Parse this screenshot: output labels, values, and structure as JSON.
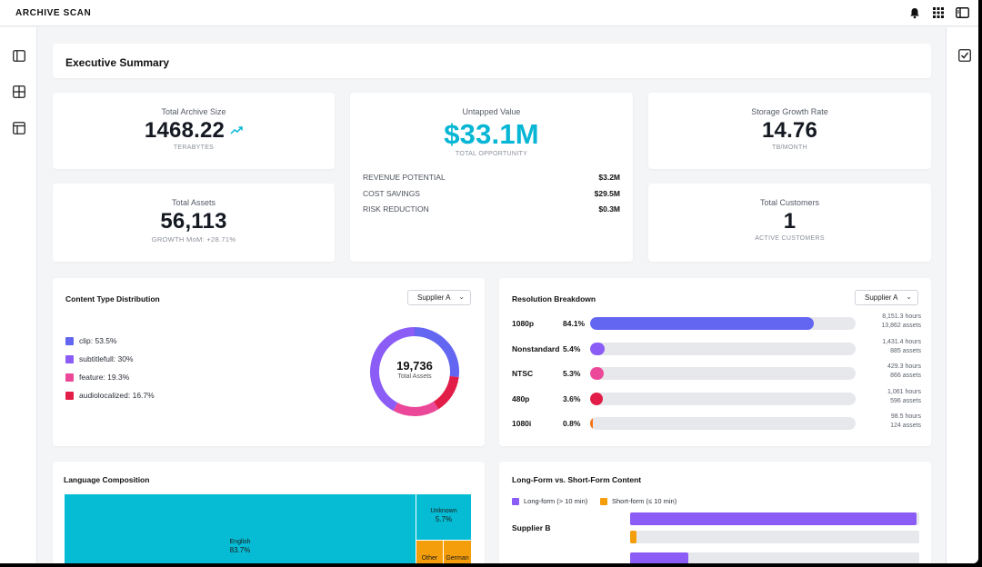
{
  "app": {
    "brand": "ARCHIVE SCAN"
  },
  "top_icons": [
    "bell-icon",
    "grid-icon",
    "panel-icon"
  ],
  "left_rail": [
    "sidebar-toggle-icon",
    "grid-plus-icon",
    "layout-icon"
  ],
  "right_rail": [
    "checkbox-icon"
  ],
  "summary": {
    "title": "Executive Summary"
  },
  "kpis": {
    "archive_size": {
      "label": "Total Archive Size",
      "value": "1468.22",
      "sub": "TERABYTES",
      "trend_icon": "trending-up-icon"
    },
    "untapped": {
      "label": "Untapped Value",
      "value": "$33.1M",
      "sub": "TOTAL OPPORTUNITY",
      "rows": [
        {
          "key": "REVENUE POTENTIAL",
          "value": "$3.2M"
        },
        {
          "key": "COST SAVINGS",
          "value": "$29.5M"
        },
        {
          "key": "RISK REDUCTION",
          "value": "$0.3M"
        }
      ]
    },
    "growth_rate": {
      "label": "Storage Growth Rate",
      "value": "14.76",
      "sub": "TB/MONTH"
    },
    "assets": {
      "label": "Total Assets",
      "value": "56,113",
      "sub": "GROWTH MoM: +28.71%"
    },
    "customers": {
      "label": "Total Customers",
      "value": "1",
      "sub": "ACTIVE CUSTOMERS"
    }
  },
  "content_type": {
    "title": "Content Type Distribution",
    "selector": "Supplier A",
    "center_value": "19,736",
    "center_label": "Total Assets",
    "legend": [
      {
        "label": "clip: 53.5%",
        "color": "#6366f1"
      },
      {
        "label": "subtitlefull: 30%",
        "color": "#8b5cf6"
      },
      {
        "label": "feature: 19.3%",
        "color": "#ec4899"
      },
      {
        "label": "audiolocalized: 16.7%",
        "color": "#e11d48"
      }
    ]
  },
  "resolution": {
    "title": "Resolution Breakdown",
    "selector": "Supplier A",
    "rows": [
      {
        "name": "1080p",
        "pct": "84.1%",
        "fill": 0.841,
        "color": "#6366f1",
        "hours": "8,151.3 hours",
        "assets": "13,862 assets"
      },
      {
        "name": "Nonstandard",
        "pct": "5.4%",
        "fill": 0.054,
        "color": "#8b5cf6",
        "hours": "1,431.4 hours",
        "assets": "885 assets"
      },
      {
        "name": "NTSC",
        "pct": "5.3%",
        "fill": 0.053,
        "color": "#ec4899",
        "hours": "429.3 hours",
        "assets": "866 assets"
      },
      {
        "name": "480p",
        "pct": "3.6%",
        "fill": 0.036,
        "color": "#e11d48",
        "hours": "1,061 hours",
        "assets": "596 assets"
      },
      {
        "name": "1080i",
        "pct": "0.8%",
        "fill": 0.008,
        "color": "#f97316",
        "hours": "98.5 hours",
        "assets": "124 assets"
      }
    ]
  },
  "language": {
    "title": "Language Composition",
    "tiles": [
      {
        "name": "English",
        "pct": "83.7%"
      },
      {
        "name": "Unknown",
        "pct": "5.7%"
      },
      {
        "name": "Other",
        "pct": ""
      },
      {
        "name": "German",
        "pct": ""
      }
    ]
  },
  "longform": {
    "title": "Long-Form vs. Short-Form Content",
    "legend": [
      {
        "label": "Long-form (> 10 min)",
        "color": "#8b5cf6"
      },
      {
        "label": "Short-form (≤ 10 min)",
        "color": "#f59e0b"
      }
    ],
    "supplier_label": "Supplier B",
    "bars": [
      {
        "series": "Long-form",
        "fill": 0.99,
        "color": "#8b5cf6"
      },
      {
        "series": "Short-form",
        "fill": 0.02,
        "color": "#f59e0b"
      },
      {
        "series": "Long-form",
        "fill": 0.2,
        "color": "#8b5cf6"
      }
    ]
  }
}
